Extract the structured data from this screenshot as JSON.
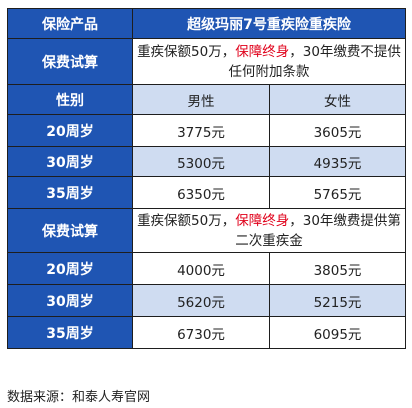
{
  "header": {
    "label": "保险产品",
    "product": "超级玛丽7号重疾险重疾险"
  },
  "plan1": {
    "label": "保费试算",
    "desc_a": "重疾保额50万，",
    "desc_hl": "保障终身",
    "desc_b": "，30年缴费不提供任何附加条款"
  },
  "gender_row": {
    "label": "性别",
    "male": "男性",
    "female": "女性"
  },
  "rows1": [
    {
      "age": "20周岁",
      "male": "3775元",
      "female": "3605元"
    },
    {
      "age": "30周岁",
      "male": "5300元",
      "female": "4935元"
    },
    {
      "age": "35周岁",
      "male": "6350元",
      "female": "5765元"
    }
  ],
  "plan2": {
    "label": "保费试算",
    "desc_a": "重疾保额50万，",
    "desc_hl": "保障终身",
    "desc_b": "，30年缴费提供第二次重疾金"
  },
  "rows2": [
    {
      "age": "20周岁",
      "male": "4000元",
      "female": "3805元"
    },
    {
      "age": "30周岁",
      "male": "5620元",
      "female": "5215元"
    },
    {
      "age": "35周岁",
      "male": "6730元",
      "female": "6095元"
    }
  ],
  "source": "数据来源：和泰人寿官网",
  "colors": {
    "header_blue": "#1f55b3",
    "row_light": "#cfdcf1",
    "highlight_red": "#e0001a"
  }
}
